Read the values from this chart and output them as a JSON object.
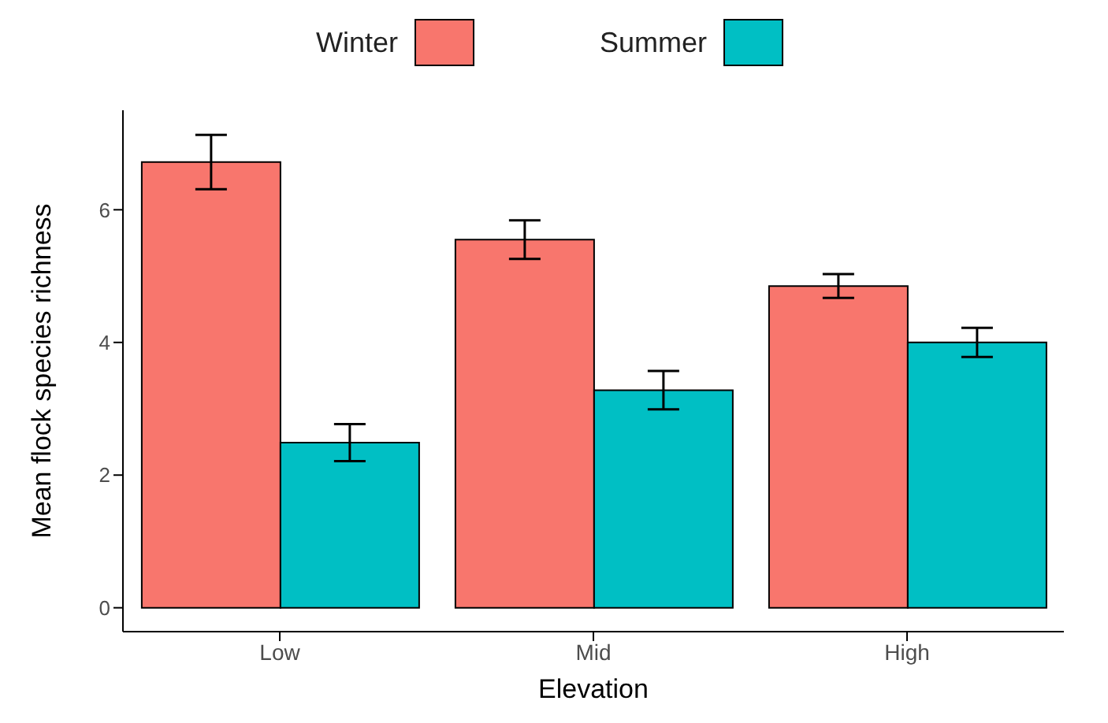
{
  "chart_data": {
    "type": "bar",
    "xlabel": "Elevation",
    "ylabel": "Mean flock species richness",
    "categories": [
      "Low",
      "Mid",
      "High"
    ],
    "series": [
      {
        "name": "Winter",
        "color": "#f8766d",
        "values": [
          6.72,
          5.55,
          4.85
        ],
        "errors": [
          0.41,
          0.29,
          0.18
        ]
      },
      {
        "name": "Summer",
        "color": "#00bfc4",
        "values": [
          2.49,
          3.28,
          4.0
        ],
        "errors": [
          0.28,
          0.29,
          0.22
        ]
      }
    ],
    "ylim": [
      -0.36,
      7.5
    ],
    "yticks": [
      0,
      2,
      4,
      6
    ],
    "grid": false,
    "legend": "top"
  }
}
